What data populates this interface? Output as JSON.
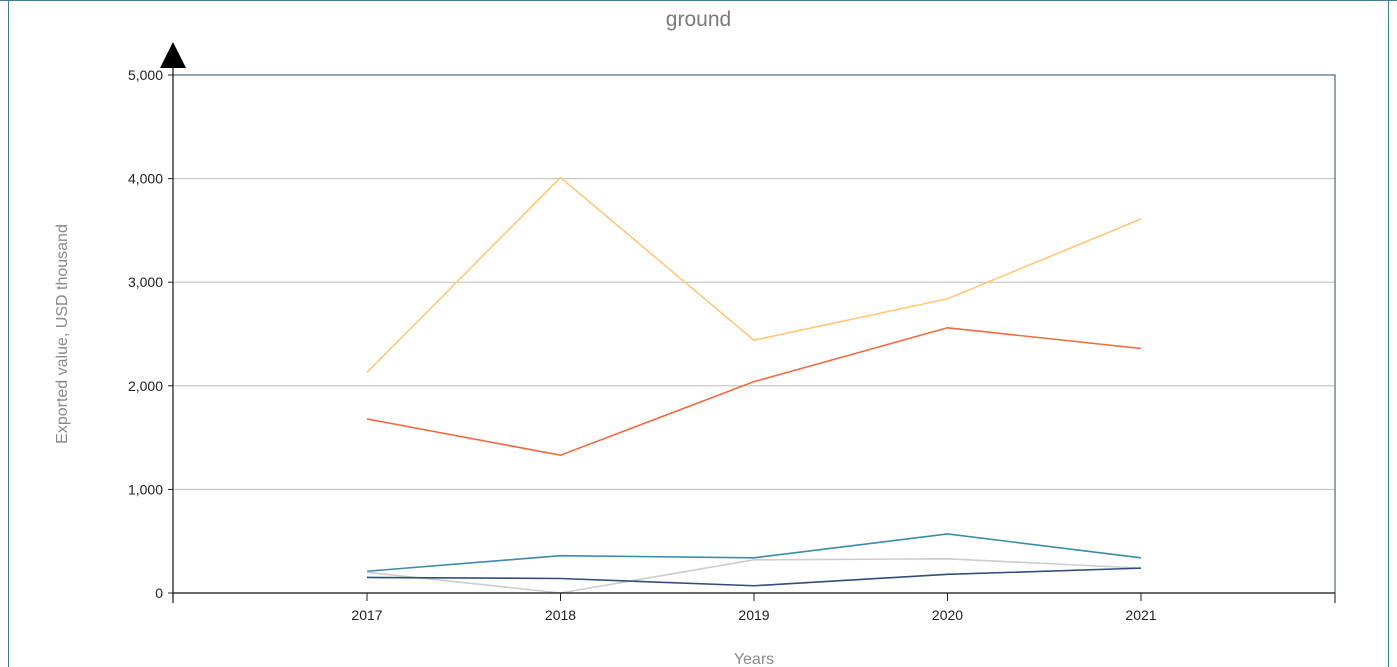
{
  "chart_data": {
    "type": "line",
    "title": "ground",
    "xlabel": "Years",
    "ylabel": "Exported value, USD thousand",
    "categories": [
      "2017",
      "2018",
      "2019",
      "2020",
      "2021"
    ],
    "ylim": [
      0,
      5000
    ],
    "yticks": [
      0,
      1000,
      2000,
      3000,
      4000,
      5000
    ],
    "ytick_labels": [
      "0",
      "1,000",
      "2,000",
      "3,000",
      "4,000",
      "5,000"
    ],
    "grid": true,
    "series": [
      {
        "color": "#ffc878",
        "values": [
          2130,
          4010,
          2440,
          2840,
          3610
        ]
      },
      {
        "color": "#f06a40",
        "values": [
          1680,
          1330,
          2040,
          2560,
          2360
        ]
      },
      {
        "color": "#3a8aa8",
        "values": [
          210,
          360,
          340,
          570,
          340
        ]
      },
      {
        "color": "#cccccc",
        "values": [
          200,
          0,
          320,
          330,
          240
        ]
      },
      {
        "color": "#2f4f7a",
        "values": [
          150,
          140,
          70,
          180,
          240
        ]
      }
    ]
  }
}
